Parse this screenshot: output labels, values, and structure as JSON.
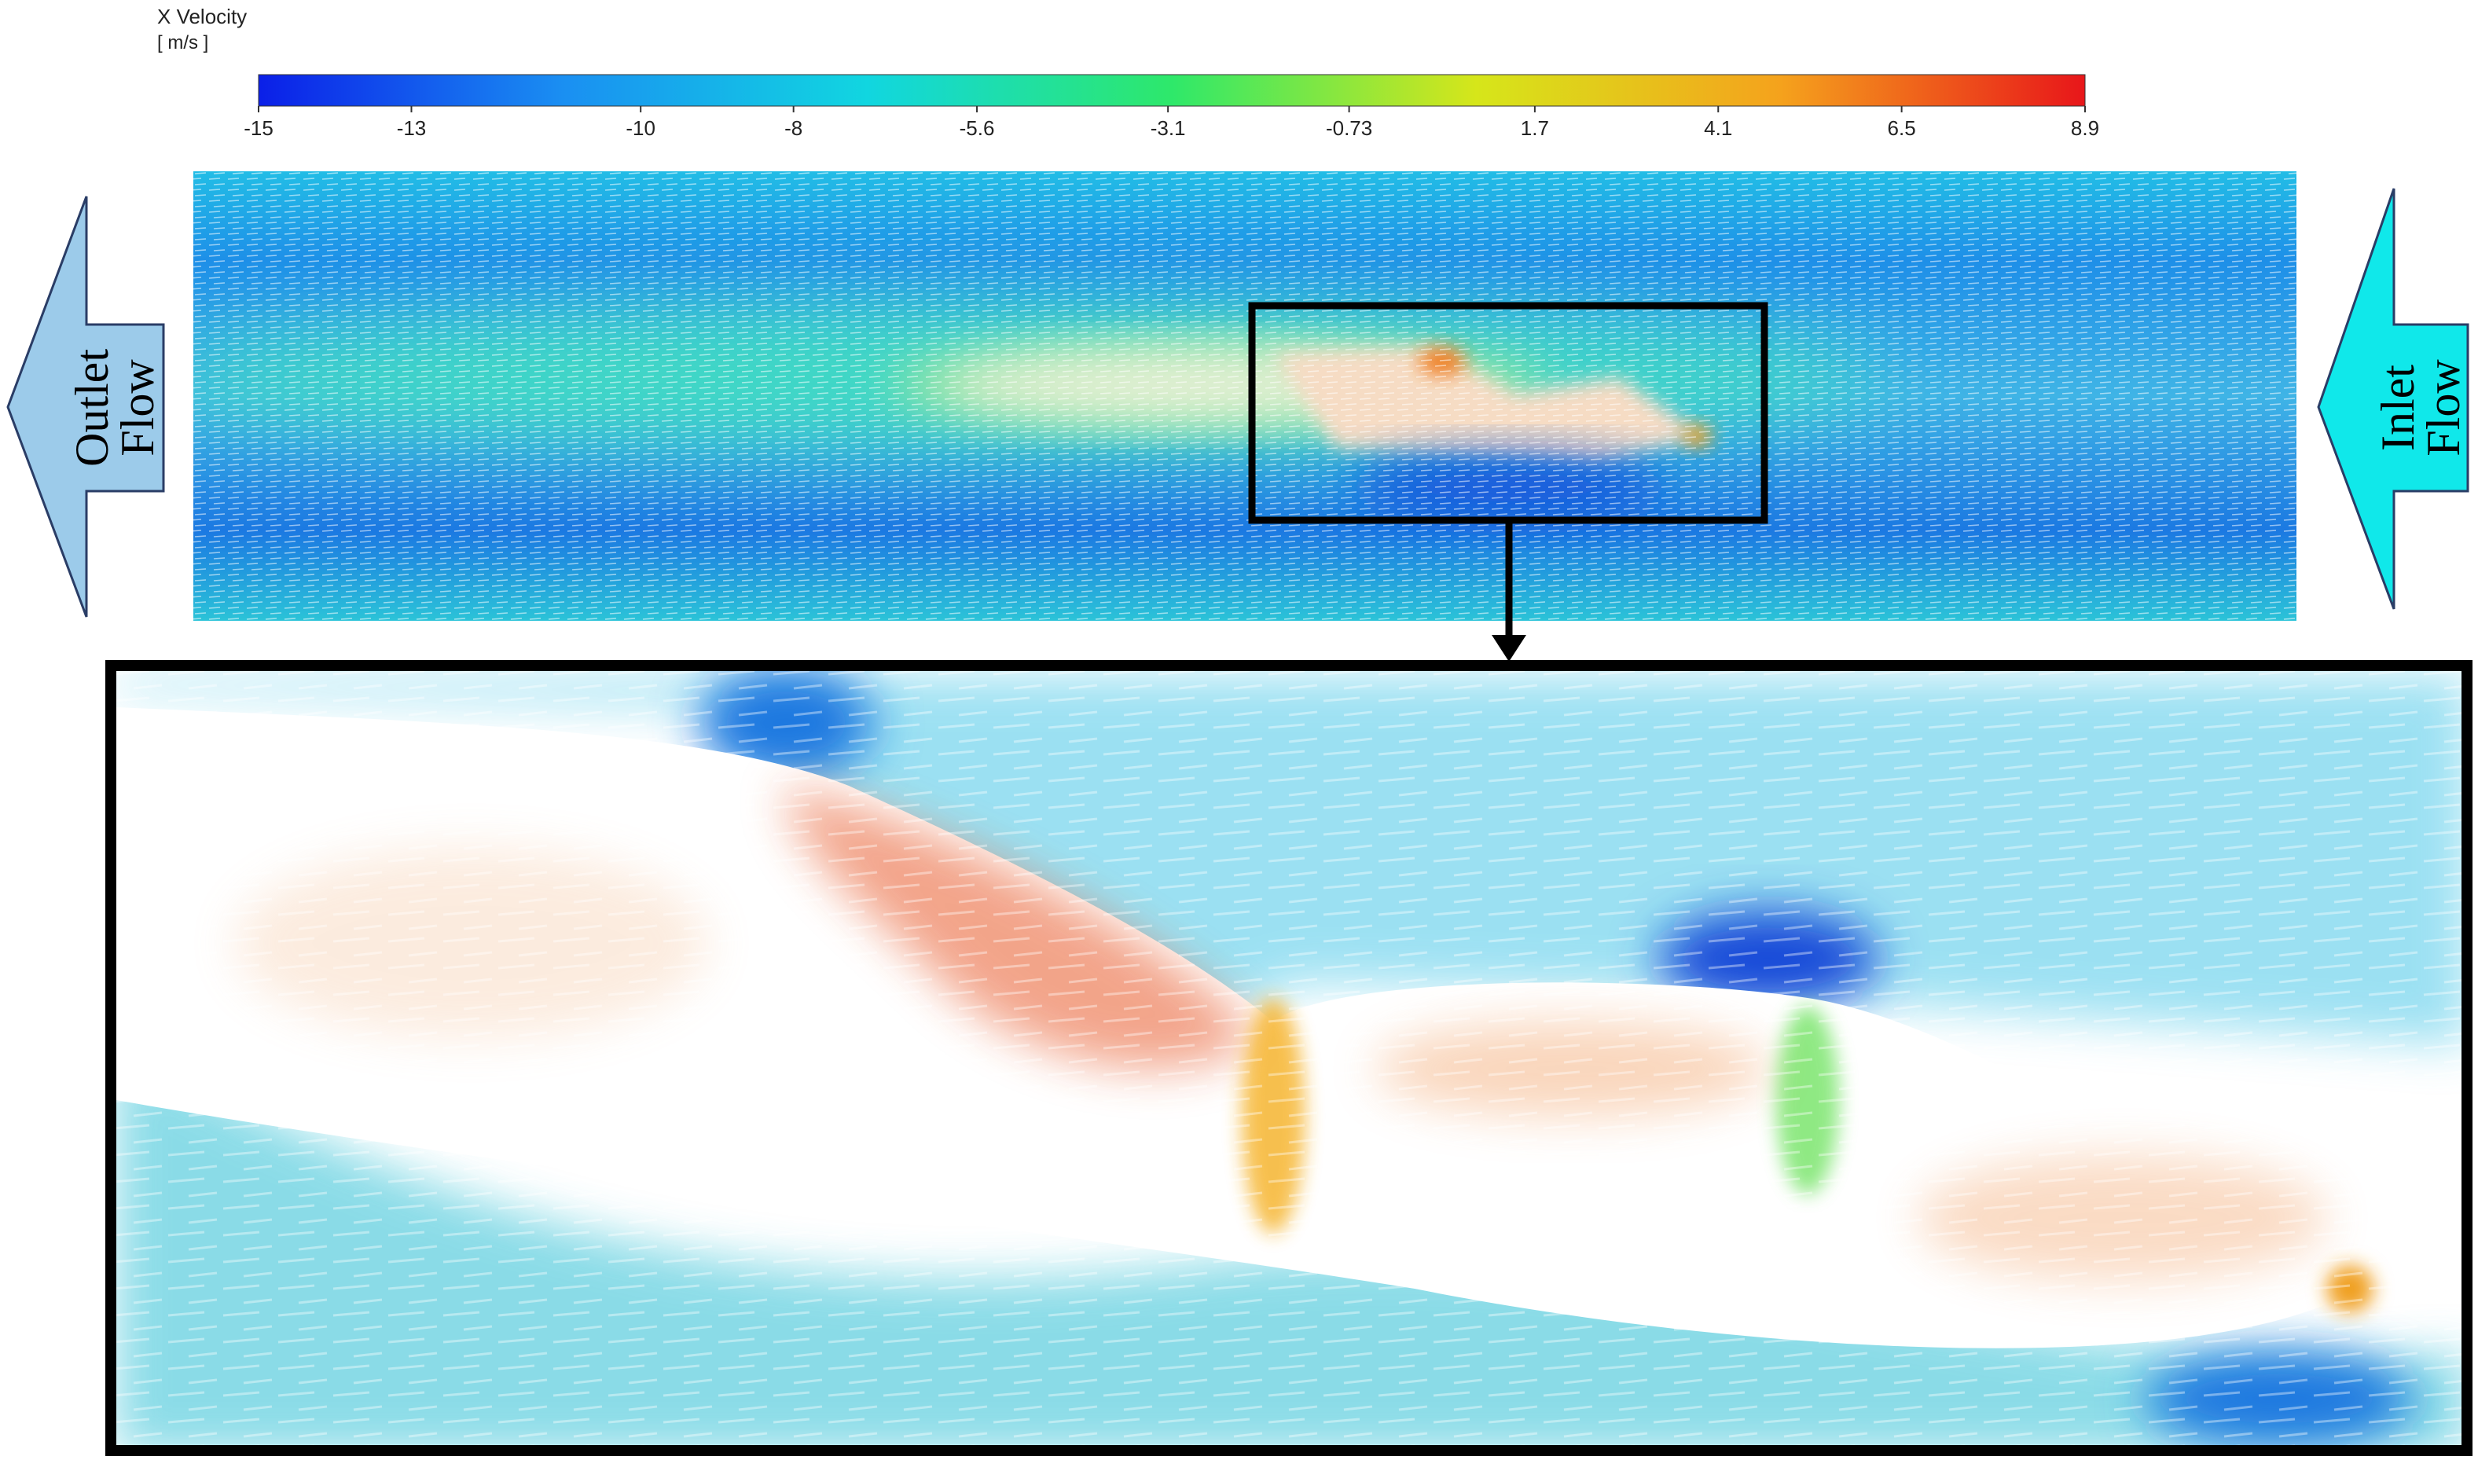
{
  "chart_data": {
    "type": "colorbar",
    "title": "X Velocity",
    "unit": "[ m/s ]",
    "xlim": [
      -15,
      8.9
    ],
    "xticks": [
      -15,
      -13,
      -10,
      -8,
      -5.6,
      -3.1,
      -0.73,
      1.7,
      4.1,
      6.5,
      8.9
    ],
    "colors": [
      "#0b1fe8",
      "#1a8ff2",
      "#11d6e0",
      "#2ee86a",
      "#d6e61a",
      "#f5a21c",
      "#e8161a"
    ],
    "annotations": [
      [
        "Outlet",
        "Flow"
      ],
      [
        "Inlet",
        "Flow"
      ]
    ]
  }
}
